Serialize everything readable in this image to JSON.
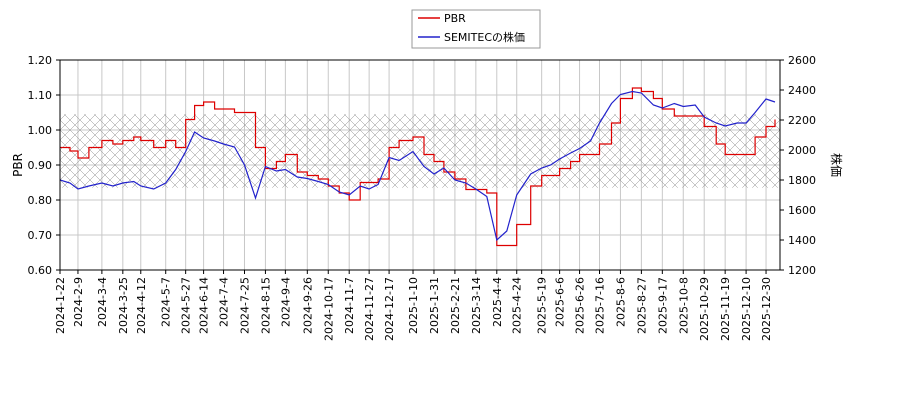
{
  "chart_data": {
    "type": "line",
    "legend": {
      "placement": "top-center"
    },
    "grid": true,
    "band": {
      "ylim": [
        0.835,
        1.045
      ],
      "pattern": "crosshatch"
    },
    "y_left": {
      "label": "PBR",
      "ylim": [
        0.6,
        1.2
      ],
      "ticks": [
        "0.60",
        "0.70",
        "0.80",
        "0.90",
        "1.00",
        "1.10",
        "1.20"
      ]
    },
    "y_right": {
      "label": "株価",
      "ylim": [
        1200,
        2600
      ],
      "ticks": [
        "1200",
        "1400",
        "1600",
        "1800",
        "2000",
        "2200",
        "2400",
        "2600"
      ]
    },
    "x_ticks": [
      "2024-1-22",
      "2024-2-9",
      "2024-3-4",
      "2024-3-25",
      "2024-4-12",
      "2024-5-7",
      "2024-5-27",
      "2024-6-14",
      "2024-7-4",
      "2024-7-25",
      "2024-8-15",
      "2024-9-4",
      "2024-9-26",
      "2024-10-17",
      "2024-11-7",
      "2024-11-27",
      "2024-12-17",
      "2025-1-10",
      "2025-1-31",
      "2025-2-21",
      "2025-3-14",
      "2025-4-4",
      "2025-4-24",
      "2025-5-19",
      "2025-6-6",
      "2025-6-26",
      "2025-7-16",
      "2025-8-6",
      "2025-8-27",
      "2025-9-17",
      "2025-10-8",
      "2025-10-29",
      "2025-11-19",
      "2025-12-10",
      "2025-12-30"
    ],
    "series": [
      {
        "name": "PBR",
        "color": "#dd0000",
        "axis": "left",
        "x": [
          "2024-1-22",
          "2024-2-1",
          "2024-2-9",
          "2024-2-20",
          "2024-3-4",
          "2024-3-15",
          "2024-3-25",
          "2024-4-5",
          "2024-4-12",
          "2024-4-25",
          "2024-5-7",
          "2024-5-17",
          "2024-5-27",
          "2024-6-5",
          "2024-6-14",
          "2024-6-25",
          "2024-7-4",
          "2024-7-15",
          "2024-7-25",
          "2024-8-5",
          "2024-8-15",
          "2024-8-26",
          "2024-9-4",
          "2024-9-16",
          "2024-9-26",
          "2024-10-7",
          "2024-10-17",
          "2024-10-28",
          "2024-11-7",
          "2024-11-18",
          "2024-11-27",
          "2024-12-6",
          "2024-12-17",
          "2024-12-27",
          "2025-1-10",
          "2025-1-21",
          "2025-1-31",
          "2025-2-10",
          "2025-2-21",
          "2025-3-4",
          "2025-3-14",
          "2025-3-25",
          "2025-4-4",
          "2025-4-14",
          "2025-4-24",
          "2025-5-8",
          "2025-5-19",
          "2025-5-28",
          "2025-6-6",
          "2025-6-17",
          "2025-6-26",
          "2025-7-7",
          "2025-7-16",
          "2025-7-28",
          "2025-8-6",
          "2025-8-18",
          "2025-8-27",
          "2025-9-8",
          "2025-9-17",
          "2025-9-29",
          "2025-10-8",
          "2025-10-20",
          "2025-10-29",
          "2025-11-10",
          "2025-11-19",
          "2025-12-1",
          "2025-12-10",
          "2025-12-19",
          "2025-12-30",
          "2026-1-8"
        ],
        "values": [
          0.95,
          0.94,
          0.92,
          0.95,
          0.97,
          0.96,
          0.97,
          0.98,
          0.97,
          0.95,
          0.97,
          0.95,
          1.03,
          1.07,
          1.08,
          1.06,
          1.06,
          1.05,
          1.05,
          0.95,
          0.89,
          0.91,
          0.93,
          0.88,
          0.87,
          0.86,
          0.84,
          0.82,
          0.8,
          0.85,
          0.85,
          0.86,
          0.95,
          0.97,
          0.98,
          0.93,
          0.91,
          0.88,
          0.86,
          0.83,
          0.83,
          0.82,
          0.67,
          0.67,
          0.73,
          0.84,
          0.87,
          0.87,
          0.89,
          0.91,
          0.93,
          0.93,
          0.96,
          1.02,
          1.09,
          1.12,
          1.11,
          1.09,
          1.06,
          1.04,
          1.04,
          1.04,
          1.01,
          0.96,
          0.93,
          0.93,
          0.93,
          0.98,
          1.01,
          1.03
        ]
      },
      {
        "name": "SEMITECの株価",
        "color": "#2222cc",
        "axis": "right",
        "x": [
          "2024-1-22",
          "2024-2-1",
          "2024-2-9",
          "2024-2-20",
          "2024-3-4",
          "2024-3-15",
          "2024-3-25",
          "2024-4-5",
          "2024-4-12",
          "2024-4-25",
          "2024-5-7",
          "2024-5-17",
          "2024-5-27",
          "2024-6-5",
          "2024-6-14",
          "2024-6-25",
          "2024-7-4",
          "2024-7-15",
          "2024-7-25",
          "2024-8-5",
          "2024-8-15",
          "2024-8-26",
          "2024-9-4",
          "2024-9-16",
          "2024-9-26",
          "2024-10-7",
          "2024-10-17",
          "2024-10-28",
          "2024-11-7",
          "2024-11-18",
          "2024-11-27",
          "2024-12-6",
          "2024-12-17",
          "2024-12-27",
          "2025-1-10",
          "2025-1-21",
          "2025-1-31",
          "2025-2-10",
          "2025-2-21",
          "2025-3-4",
          "2025-3-14",
          "2025-3-25",
          "2025-4-4",
          "2025-4-14",
          "2025-4-24",
          "2025-5-8",
          "2025-5-19",
          "2025-5-28",
          "2025-6-6",
          "2025-6-17",
          "2025-6-26",
          "2025-7-7",
          "2025-7-16",
          "2025-7-28",
          "2025-8-6",
          "2025-8-18",
          "2025-8-27",
          "2025-9-8",
          "2025-9-17",
          "2025-9-29",
          "2025-10-8",
          "2025-10-20",
          "2025-10-29",
          "2025-11-10",
          "2025-11-19",
          "2025-12-1",
          "2025-12-10",
          "2025-12-19",
          "2025-12-30",
          "2026-1-8"
        ],
        "values": [
          1800,
          1780,
          1740,
          1760,
          1780,
          1760,
          1780,
          1790,
          1760,
          1740,
          1780,
          1870,
          1990,
          2120,
          2080,
          2060,
          2040,
          2020,
          1900,
          1680,
          1890,
          1860,
          1870,
          1820,
          1810,
          1790,
          1770,
          1720,
          1700,
          1760,
          1740,
          1770,
          1950,
          1930,
          1990,
          1890,
          1840,
          1880,
          1800,
          1780,
          1740,
          1690,
          1400,
          1460,
          1700,
          1840,
          1880,
          1900,
          1940,
          1980,
          2010,
          2060,
          2180,
          2310,
          2370,
          2390,
          2380,
          2300,
          2280,
          2310,
          2290,
          2300,
          2220,
          2180,
          2160,
          2180,
          2180,
          2250,
          2340,
          2320
        ]
      }
    ]
  }
}
